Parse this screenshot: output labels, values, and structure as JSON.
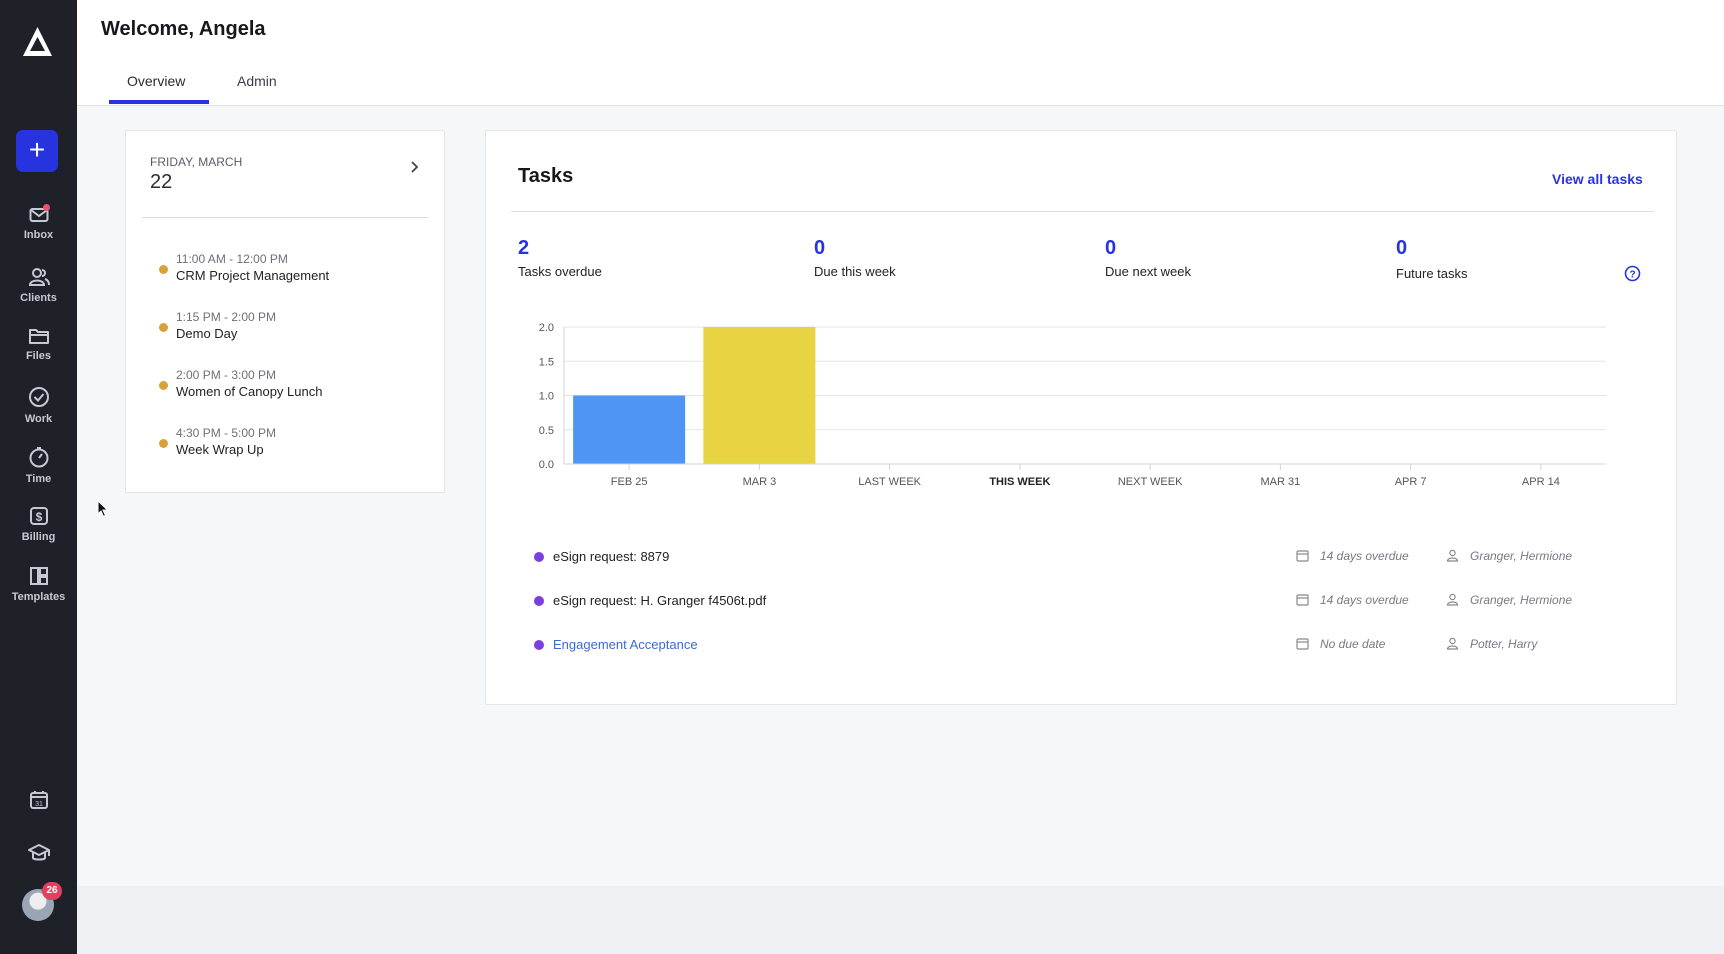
{
  "sidebar": {
    "add_label": "+",
    "items": [
      {
        "label": "Inbox"
      },
      {
        "label": "Clients"
      },
      {
        "label": "Files"
      },
      {
        "label": "Work"
      },
      {
        "label": "Time"
      },
      {
        "label": "Billing"
      },
      {
        "label": "Templates"
      }
    ],
    "calendar_icon_text": "31",
    "avatar_badge": "26"
  },
  "header": {
    "title": "Welcome, Angela",
    "tabs": [
      {
        "label": "Overview",
        "active": true
      },
      {
        "label": "Admin",
        "active": false
      }
    ]
  },
  "calendar": {
    "day_label": "FRIDAY, MARCH",
    "date": "22",
    "events": [
      {
        "time": "11:00 AM - 12:00 PM",
        "title": "CRM Project Management"
      },
      {
        "time": "1:15 PM - 2:00 PM",
        "title": "Demo Day"
      },
      {
        "time": "2:00 PM - 3:00 PM",
        "title": "Women of Canopy Lunch"
      },
      {
        "time": "4:30 PM - 5:00 PM",
        "title": "Week Wrap Up"
      }
    ]
  },
  "tasks": {
    "title": "Tasks",
    "view_all": "View all tasks",
    "stats": [
      {
        "value": "2",
        "label": "Tasks overdue"
      },
      {
        "value": "0",
        "label": "Due this week"
      },
      {
        "value": "0",
        "label": "Due next week"
      },
      {
        "value": "0",
        "label": "Future tasks"
      }
    ],
    "items": [
      {
        "name": "eSign request: 8879",
        "due": "14 days overdue",
        "assignee": "Granger, Hermione",
        "link": false
      },
      {
        "name": "eSign request: H. Granger f4506t.pdf",
        "due": "14 days overdue",
        "assignee": "Granger, Hermione",
        "link": false
      },
      {
        "name": "Engagement Acceptance",
        "due": "No due date",
        "assignee": "Potter, Harry",
        "link": true
      }
    ]
  },
  "chart_data": {
    "type": "bar",
    "categories": [
      "FEB 25",
      "MAR 3",
      "LAST WEEK",
      "THIS WEEK",
      "NEXT WEEK",
      "MAR 31",
      "APR 7",
      "APR 14"
    ],
    "values": [
      1,
      2,
      0,
      0,
      0,
      0,
      0,
      0
    ],
    "bar_colors": [
      "#4f95f3",
      "#e8d443",
      "#4f95f3",
      "#4f95f3",
      "#4f95f3",
      "#4f95f3",
      "#4f95f3",
      "#4f95f3"
    ],
    "bold_category": "THIS WEEK",
    "yticks": [
      "0.0",
      "0.5",
      "1.0",
      "1.5",
      "2.0"
    ],
    "ylim": [
      0,
      2
    ],
    "grid": true
  },
  "colors": {
    "accent": "#2833e0",
    "sidebar_bg": "#1f2129",
    "event_dot": "#d9a13b",
    "task_dot": "#7b3fe0"
  }
}
